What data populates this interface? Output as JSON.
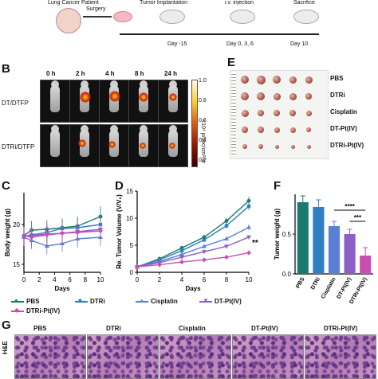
{
  "schematic": {
    "patient_label": "Lung Cancer Patient",
    "step1": "Surgery",
    "step2": "Tumor Implantation",
    "step3": "i.v. injection",
    "step4": "Sacrifice",
    "day1": "Day -15",
    "day2": "Day 0, 3, 6",
    "day3": "Day 10"
  },
  "panel_labels": {
    "B": "B",
    "C": "C",
    "D": "D",
    "E": "E",
    "F": "F",
    "G": "G"
  },
  "panelB": {
    "times": [
      "0 h",
      "2 h",
      "4 h",
      "8 h",
      "24 h"
    ],
    "rows": [
      "DT/DTFP",
      "DTRi/DTFP"
    ],
    "colorbar_max": "1.0",
    "colorbar_v2": "0.8",
    "colorbar_v3": "0.6",
    "colorbar_v4": "0.4",
    "colorbar_min": "0.2",
    "colorbar_unit": "×10⁹ p/sec/cm²/sr"
  },
  "panelE": {
    "groups": [
      "PBS",
      "DTRi",
      "Cisplatin",
      "DT-Pt(IV)",
      "DTRi-Pt(IV)"
    ]
  },
  "legend": [
    "PBS",
    "DTRi",
    "Cisplatin",
    "DT-Pt(IV)",
    "DTRi-Pt(IV)"
  ],
  "colors": {
    "PBS": "#1a7a6e",
    "DTRi": "#2f7fc1",
    "Cisplatin": "#5a7fd6",
    "DT-Pt(IV)": "#8d5fc8",
    "DTRi-Pt(IV)": "#c84fb0"
  },
  "panelG": {
    "row_label": "H&E",
    "columns": [
      "PBS",
      "DTRi",
      "Cisplatin",
      "DT-Pt(IV)",
      "DTRi-Pt(IV)"
    ]
  },
  "chart_data": [
    {
      "panel": "C",
      "type": "line",
      "xlabel": "Days",
      "ylabel": "Body weight (g)",
      "xlim": [
        0,
        10
      ],
      "ylim": [
        14,
        24
      ],
      "xticks": [
        0,
        2,
        4,
        6,
        8,
        10
      ],
      "yticks": [
        15,
        20
      ],
      "x": [
        0,
        1,
        3,
        5,
        7,
        10
      ],
      "series": [
        {
          "name": "PBS",
          "values": [
            18.6,
            19.3,
            19.4,
            19.6,
            19.8,
            21.0
          ]
        },
        {
          "name": "DTRi",
          "values": [
            18.5,
            18.7,
            19.0,
            19.5,
            19.6,
            20.0
          ]
        },
        {
          "name": "Cisplatin",
          "values": [
            18.4,
            18.0,
            17.3,
            17.6,
            18.2,
            18.4
          ]
        },
        {
          "name": "DT-Pt(IV)",
          "values": [
            18.5,
            18.6,
            18.8,
            18.9,
            19.1,
            19.4
          ]
        },
        {
          "name": "DTRi-Pt(IV)",
          "values": [
            18.6,
            18.4,
            18.7,
            18.9,
            19.0,
            19.2
          ]
        }
      ]
    },
    {
      "panel": "D",
      "type": "line",
      "xlabel": "Days",
      "ylabel": "Re. Tumor Volume (V/V₀)",
      "xlim": [
        0,
        10
      ],
      "ylim": [
        0,
        15
      ],
      "xticks": [
        0,
        2,
        4,
        6,
        8,
        10
      ],
      "yticks": [
        0,
        5,
        10,
        15
      ],
      "x": [
        0,
        2,
        4,
        6,
        8,
        10
      ],
      "annotation": "**",
      "series": [
        {
          "name": "PBS",
          "values": [
            1.0,
            2.5,
            4.5,
            6.5,
            9.5,
            13.2
          ]
        },
        {
          "name": "DTRi",
          "values": [
            1.0,
            2.3,
            4.0,
            6.0,
            8.6,
            12.2
          ]
        },
        {
          "name": "Cisplatin",
          "values": [
            1.0,
            2.0,
            3.3,
            4.8,
            6.2,
            8.3
          ]
        },
        {
          "name": "DT-Pt(IV)",
          "values": [
            1.0,
            1.8,
            2.8,
            3.8,
            4.8,
            6.5
          ]
        },
        {
          "name": "DTRi-Pt(IV)",
          "values": [
            1.0,
            1.4,
            1.9,
            2.3,
            2.8,
            3.6
          ]
        }
      ]
    },
    {
      "panel": "F",
      "type": "bar",
      "ylabel": "Tumor weight (g)",
      "ylim": [
        0,
        1.0
      ],
      "yticks": [
        0.0,
        0.5
      ],
      "categories": [
        "PBS",
        "DTRi",
        "Cisplatin",
        "DT-Pt(IV)",
        "DTRi-Pt(IV)"
      ],
      "values": [
        0.9,
        0.84,
        0.6,
        0.5,
        0.23
      ],
      "errors": [
        0.08,
        0.09,
        0.06,
        0.06,
        0.1
      ],
      "significance": [
        {
          "from": "Cisplatin",
          "to": "DTRi-Pt(IV)",
          "label": "****"
        },
        {
          "from": "DT-Pt(IV)",
          "to": "DTRi-Pt(IV)",
          "label": "***"
        }
      ]
    }
  ]
}
